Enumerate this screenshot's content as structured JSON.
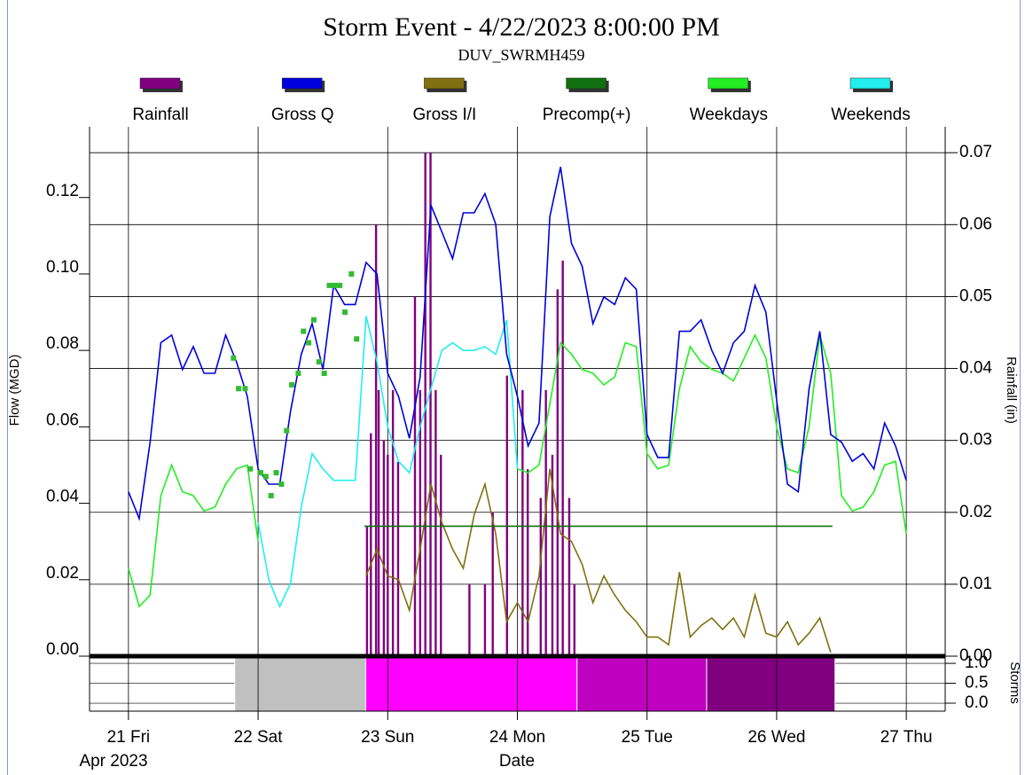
{
  "chart_data": {
    "type": "line",
    "title": "Storm Event - 4/22/2023 8:00:00 PM",
    "subtitle": "DUV_SWRMH459",
    "ylabel": "Flow (MGD)",
    "y2label": "Rainfall (in)",
    "xlabel": "Date",
    "xsublabel": "Apr 2023",
    "grid": true,
    "legend": "top",
    "xlim": [
      20.7,
      27.3
    ],
    "xticks": [
      {
        "value": 21,
        "label": "21 Fri"
      },
      {
        "value": 22,
        "label": "22 Sat"
      },
      {
        "value": 23,
        "label": "23 Sun"
      },
      {
        "value": 24,
        "label": "24 Mon"
      },
      {
        "value": 25,
        "label": "25 Tue"
      },
      {
        "value": 26,
        "label": "26 Wed"
      },
      {
        "value": 27,
        "label": "27 Thu"
      }
    ],
    "ylim": [
      0,
      0.1385
    ],
    "yticks": [
      {
        "value": 0,
        "label": "0.00"
      },
      {
        "value": 0.02,
        "label": "0.02"
      },
      {
        "value": 0.04,
        "label": "0.04"
      },
      {
        "value": 0.06,
        "label": "0.06"
      },
      {
        "value": 0.08,
        "label": "0.08"
      },
      {
        "value": 0.1,
        "label": "0.10"
      },
      {
        "value": 0.12,
        "label": "0.12"
      }
    ],
    "y2lim": [
      0,
      0.0736
    ],
    "y2ticks": [
      {
        "value": 0,
        "label": "0.00"
      },
      {
        "value": 0.01,
        "label": "0.01"
      },
      {
        "value": 0.02,
        "label": "0.02"
      },
      {
        "value": 0.03,
        "label": "0.03"
      },
      {
        "value": 0.04,
        "label": "0.04"
      },
      {
        "value": 0.05,
        "label": "0.05"
      },
      {
        "value": 0.06,
        "label": "0.06"
      },
      {
        "value": 0.07,
        "label": "0.07"
      }
    ],
    "x": [
      21,
      21.083,
      21.167,
      21.25,
      21.333,
      21.417,
      21.5,
      21.583,
      21.667,
      21.75,
      21.833,
      21.917,
      22,
      22.083,
      22.167,
      22.25,
      22.333,
      22.417,
      22.5,
      22.583,
      22.667,
      22.75,
      22.833,
      22.917,
      23,
      23.083,
      23.167,
      23.25,
      23.333,
      23.417,
      23.5,
      23.583,
      23.667,
      23.75,
      23.833,
      23.917,
      24,
      24.083,
      24.167,
      24.25,
      24.333,
      24.417,
      24.5,
      24.583,
      24.667,
      24.75,
      24.833,
      24.917,
      25,
      25.083,
      25.167,
      25.25,
      25.333,
      25.417,
      25.5,
      25.583,
      25.667,
      25.75,
      25.833,
      25.917,
      26,
      26.083,
      26.167,
      26.25,
      26.333,
      26.417,
      26.5,
      26.583,
      26.667,
      26.75,
      26.833,
      26.917,
      27
    ],
    "series": [
      {
        "name": "Rainfall",
        "type": "bar",
        "axis": "y2",
        "color": "#800080",
        "x": [
          22.84,
          22.87,
          22.91,
          22.93,
          22.97,
          23.0,
          23.04,
          23.08,
          23.21,
          23.25,
          23.29,
          23.33,
          23.37,
          23.41,
          23.63,
          23.75,
          23.81,
          23.92,
          24.04,
          24.08,
          24.18,
          24.22,
          24.27,
          24.31,
          24.35,
          24.4,
          24.44
        ],
        "values": [
          0.018,
          0.031,
          0.06,
          0.037,
          0.03,
          0.028,
          0.037,
          0.027,
          0.05,
          0.037,
          0.07,
          0.07,
          0.037,
          0.028,
          0.01,
          0.01,
          0.02,
          0.039,
          0.037,
          0.026,
          0.022,
          0.037,
          0.028,
          0.051,
          0.055,
          0.022,
          0.01
        ]
      },
      {
        "name": "Gross Q",
        "color": "#0000dd",
        "values": [
          0.043,
          0.036,
          0.056,
          0.082,
          0.084,
          0.075,
          0.081,
          0.074,
          0.074,
          0.084,
          0.077,
          0.068,
          0.049,
          0.045,
          0.045,
          0.064,
          0.079,
          0.087,
          0.075,
          0.097,
          0.092,
          0.092,
          0.103,
          0.1,
          0.074,
          0.068,
          0.057,
          0.073,
          0.118,
          0.111,
          0.104,
          0.116,
          0.116,
          0.121,
          0.113,
          0.079,
          0.068,
          0.055,
          0.061,
          0.115,
          0.128,
          0.108,
          0.102,
          0.087,
          0.094,
          0.092,
          0.099,
          0.096,
          0.058,
          0.052,
          0.052,
          0.085,
          0.085,
          0.088,
          0.08,
          0.074,
          0.082,
          0.085,
          0.097,
          0.09,
          0.067,
          0.045,
          0.043,
          0.07,
          0.085,
          0.058,
          0.056,
          0.051,
          0.053,
          0.049,
          0.061,
          0.055,
          0.046
        ]
      },
      {
        "name": "Gross I/I",
        "color": "#807010",
        "values": [
          null,
          null,
          null,
          null,
          null,
          null,
          null,
          null,
          null,
          null,
          null,
          null,
          null,
          null,
          null,
          null,
          null,
          null,
          null,
          null,
          null,
          null,
          0.021,
          0.028,
          0.021,
          0.02,
          0.012,
          0.028,
          0.045,
          0.035,
          0.028,
          0.023,
          0.037,
          0.045,
          0.032,
          0.009,
          0.014,
          0.009,
          0.021,
          0.049,
          0.032,
          0.03,
          0.024,
          0.014,
          0.021,
          0.016,
          0.012,
          0.009,
          0.005,
          0.005,
          0.003,
          0.022,
          0.005,
          0.008,
          0.01,
          0.007,
          0.01,
          0.005,
          0.016,
          0.006,
          0.005,
          0.009,
          0.003,
          0.006,
          0.01,
          0.001,
          null,
          null,
          null,
          null,
          null,
          null,
          null
        ]
      },
      {
        "name": "Precomp(+)",
        "color": "#107010",
        "x": [
          22.82,
          26.43
        ],
        "values": [
          0.034,
          0.034
        ]
      },
      {
        "name": "Weekdays",
        "color": "#22ee22",
        "values": [
          0.023,
          0.013,
          0.016,
          0.042,
          0.05,
          0.043,
          0.042,
          0.038,
          0.039,
          0.045,
          0.049,
          0.05,
          0.03,
          null,
          null,
          null,
          null,
          null,
          null,
          null,
          null,
          null,
          null,
          null,
          null,
          null,
          null,
          null,
          null,
          null,
          null,
          null,
          null,
          null,
          null,
          null,
          0.049,
          0.048,
          0.05,
          0.066,
          0.082,
          0.079,
          0.075,
          0.074,
          0.071,
          0.073,
          0.082,
          0.081,
          0.053,
          0.049,
          0.05,
          0.07,
          0.081,
          0.077,
          0.075,
          0.074,
          0.072,
          0.078,
          0.084,
          0.078,
          0.06,
          0.049,
          0.048,
          0.06,
          0.084,
          0.074,
          0.042,
          0.038,
          0.039,
          0.043,
          0.05,
          0.051,
          0.032
        ]
      },
      {
        "name": "Weekends",
        "color": "#22eeee",
        "values": [
          null,
          null,
          null,
          null,
          null,
          null,
          null,
          null,
          null,
          null,
          null,
          null,
          0.035,
          0.02,
          0.013,
          0.019,
          0.039,
          0.053,
          0.049,
          0.046,
          0.046,
          0.046,
          0.089,
          0.077,
          0.06,
          0.051,
          0.048,
          0.06,
          0.07,
          0.08,
          0.082,
          0.08,
          0.08,
          0.081,
          0.079,
          0.088,
          0.049,
          null,
          null,
          null,
          null,
          null,
          null,
          null,
          null,
          null,
          null,
          null,
          null,
          null,
          null,
          null,
          null,
          null,
          null,
          null,
          null,
          null,
          null,
          null,
          null,
          null,
          null,
          null,
          null,
          null,
          null,
          null,
          null,
          null,
          null,
          null,
          null
        ]
      }
    ],
    "markers": {
      "color": "#33bb33",
      "x": [
        21.81,
        21.85,
        21.9,
        21.94,
        22.02,
        22.06,
        22.1,
        22.14,
        22.18,
        22.22,
        22.26,
        22.31,
        22.35,
        22.39,
        22.43,
        22.47,
        22.51,
        22.55,
        22.59,
        22.63,
        22.67,
        22.72,
        22.76
      ],
      "values": [
        0.078,
        0.07,
        0.07,
        0.049,
        0.048,
        0.047,
        0.042,
        0.048,
        0.045,
        0.059,
        0.071,
        0.074,
        0.085,
        0.082,
        0.088,
        0.077,
        0.074,
        0.097,
        0.097,
        0.097,
        0.09,
        0.1,
        0.083
      ]
    },
    "storms": {
      "label": "Storms",
      "ylim": [
        -0.2,
        1.18
      ],
      "yticks": [
        {
          "value": 0,
          "label": "0.0"
        },
        {
          "value": 0.5,
          "label": "0.5"
        },
        {
          "value": 1,
          "label": "1.0"
        }
      ],
      "periods": [
        {
          "start": 21.82,
          "end": 22.83,
          "color": "#c0c0c0"
        },
        {
          "start": 22.83,
          "end": 24.46,
          "color": "#ff00ff"
        },
        {
          "start": 24.46,
          "end": 25.46,
          "color": "#c000c0"
        },
        {
          "start": 25.46,
          "end": 26.45,
          "color": "#800080"
        }
      ]
    }
  }
}
